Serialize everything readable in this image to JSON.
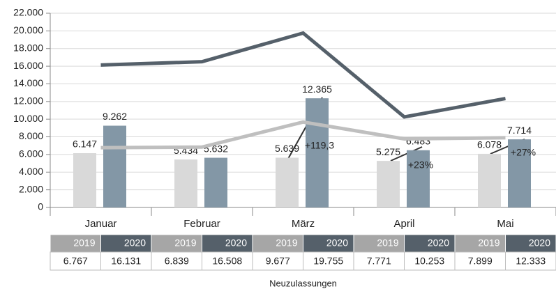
{
  "chart_data": {
    "type": "bar",
    "categories": [
      "Januar",
      "Februar",
      "März",
      "April",
      "Mai"
    ],
    "series": [
      {
        "name": "2019",
        "type": "bar",
        "color": "#d9d9d9",
        "values": [
          6147,
          5434,
          5639,
          5275,
          6078
        ],
        "value_labels": [
          "6.147",
          "5.434",
          "5.639",
          "5.275",
          "6.078"
        ]
      },
      {
        "name": "2020",
        "type": "bar",
        "color": "#8397a6",
        "values": [
          9262,
          5632,
          12365,
          6483,
          7714
        ],
        "value_labels": [
          "9.262",
          "5.632",
          "12.365",
          "6.483",
          "7.714"
        ]
      },
      {
        "name": "2019",
        "type": "line",
        "color": "#bfbfbf",
        "header_color": "#a6a6a6",
        "values": [
          6767,
          6839,
          9677,
          7771,
          7899
        ],
        "value_labels": [
          "6.767",
          "6.839",
          "9.677",
          "7.771",
          "7.899"
        ]
      },
      {
        "name": "2020",
        "type": "line",
        "color": "#55606a",
        "header_color": "#55606a",
        "values": [
          16131,
          16508,
          19755,
          10253,
          12333
        ],
        "value_labels": [
          "16.131",
          "16.508",
          "19.755",
          "10.253",
          "12.333"
        ]
      }
    ],
    "ylim": [
      0,
      22000
    ],
    "yticks": [
      0,
      {
        "value": 2000,
        "label": "2.000"
      },
      {
        "value": 4000,
        "label": "4.000"
      },
      {
        "value": 6000,
        "label": "6.000"
      },
      {
        "value": 8000,
        "label": "8.000"
      },
      {
        "value": 10000,
        "label": "10.000"
      },
      {
        "value": 12000,
        "label": "12.000"
      },
      {
        "value": 14000,
        "label": "14.000"
      },
      {
        "value": 16000,
        "label": "16.000"
      },
      {
        "value": 18000,
        "label": "18.000"
      },
      {
        "value": 20000,
        "label": "20.000"
      },
      {
        "value": 22000,
        "label": "22.000"
      }
    ],
    "grid": true,
    "annotations": [
      "+119,3",
      "+23%",
      "+27%"
    ],
    "table_caption": "Neuzulassungen"
  }
}
